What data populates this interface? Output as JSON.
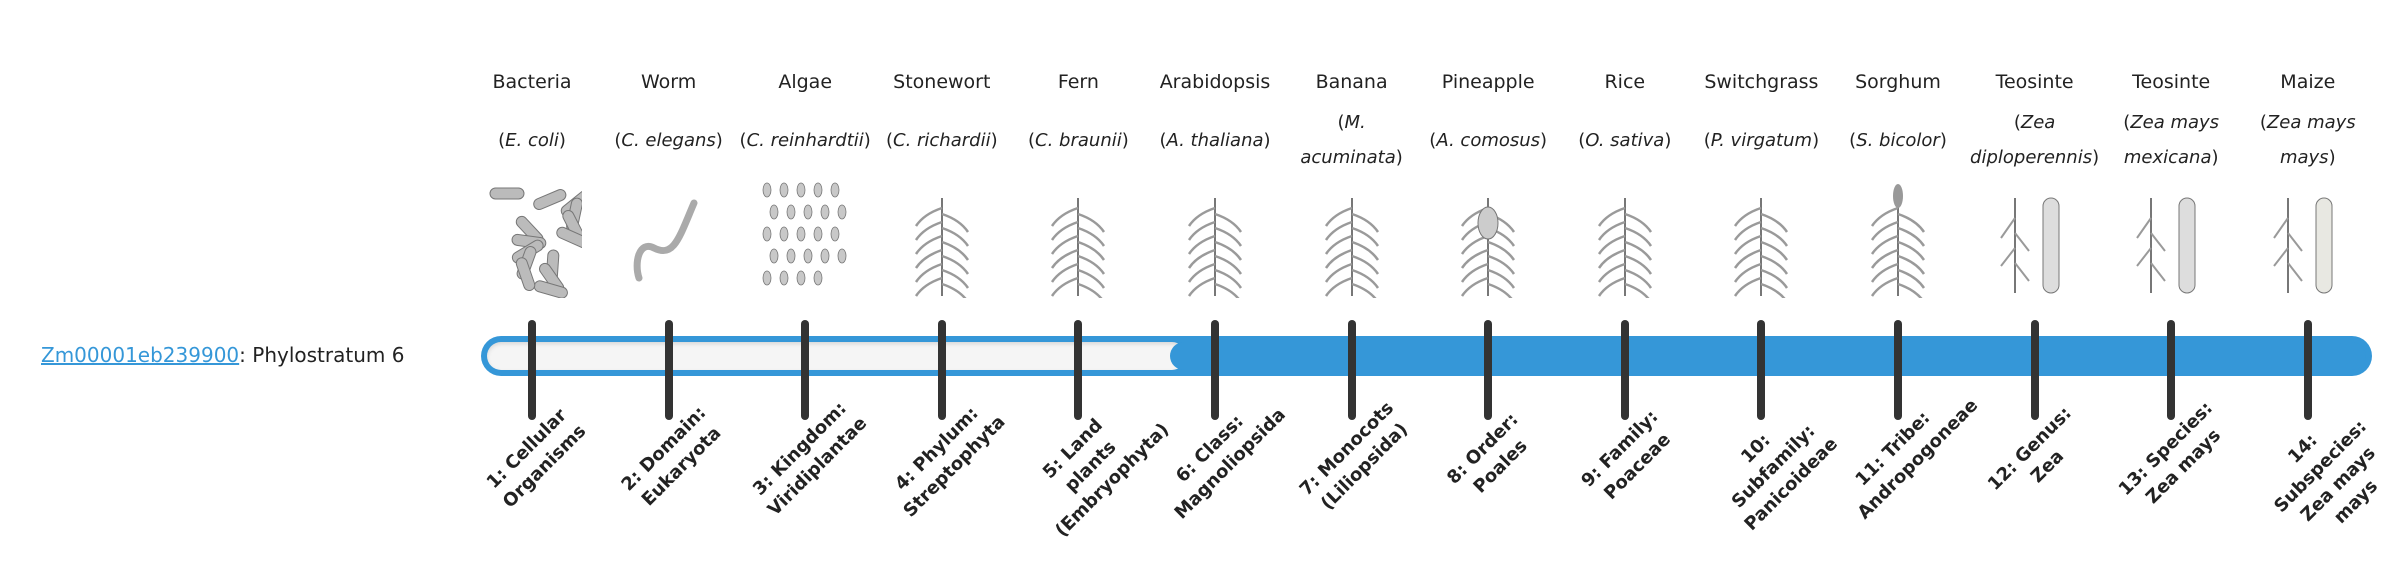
{
  "gene": {
    "id": "Zm00001eb239900",
    "separator": ": ",
    "phylostratum_text": "Phylostratum 6",
    "phylostratum": 6
  },
  "colors": {
    "accent": "#3597d8",
    "tick": "#333333",
    "empty": "#f5f5f5"
  },
  "organisms": [
    {
      "name": "Bacteria",
      "species": "E. coli",
      "icon": "bacteria-icon"
    },
    {
      "name": "Worm",
      "species": "C. elegans",
      "icon": "worm-icon"
    },
    {
      "name": "Algae",
      "species": "C. reinhardtii",
      "icon": "algae-icon"
    },
    {
      "name": "Stonewort",
      "species": "C. richardii",
      "icon": "stonewort-icon"
    },
    {
      "name": "Fern",
      "species": "C. braunii",
      "icon": "fern-icon"
    },
    {
      "name": "Arabidopsis",
      "species": "A. thaliana",
      "icon": "arabidopsis-icon"
    },
    {
      "name": "Banana",
      "species": "M. acuminata",
      "icon": "banana-icon"
    },
    {
      "name": "Pineapple",
      "species": "A. comosus",
      "icon": "pineapple-icon"
    },
    {
      "name": "Rice",
      "species": "O. sativa",
      "icon": "rice-icon"
    },
    {
      "name": "Switchgrass",
      "species": "P. virgatum",
      "icon": "switchgrass-icon"
    },
    {
      "name": "Sorghum",
      "species": "S. bicolor",
      "icon": "sorghum-icon"
    },
    {
      "name": "Teosinte",
      "species": "Zea diploperennis",
      "icon": "teosinte-icon"
    },
    {
      "name": "Teosinte",
      "species": "Zea mays mexicana",
      "icon": "teosinte-icon"
    },
    {
      "name": "Maize",
      "species": "Zea mays mays",
      "icon": "maize-icon"
    }
  ],
  "strata": [
    "1: Cellular Organisms",
    "2: Domain: Eukaryota",
    "3: Kingdom: Viridiplantae",
    "4: Phylum: Streptophyta",
    "5: Land plants (Embryophyta)",
    "6: Class: Magnoliopsida",
    "7: Monocots (Liliopsida)",
    "8: Order: Poales",
    "9: Family: Poaceae",
    "10: Subfamily: Panicoideae",
    "11: Tribe: Andropogoneae",
    "12: Genus: Zea",
    "13: Species: Zea mays",
    "14: Subspecies: Zea mays mays"
  ]
}
